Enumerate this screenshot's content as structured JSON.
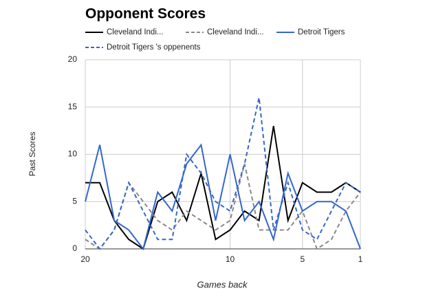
{
  "chart_data": {
    "type": "line",
    "title": "Opponent Scores",
    "x_label": "Games back",
    "y_label": "Past Scores",
    "x": [
      20,
      19,
      18,
      17,
      16,
      15,
      14,
      13,
      12,
      11,
      10,
      9,
      8,
      7,
      6,
      5,
      4,
      3,
      2,
      1
    ],
    "series": [
      {
        "name": "Cleveland Indi...",
        "color": "#000000",
        "dashed": false,
        "values": [
          7,
          7,
          3,
          1,
          0,
          5,
          6,
          3,
          8,
          1,
          2,
          4,
          3,
          13,
          3,
          7,
          6,
          6,
          7,
          6
        ]
      },
      {
        "name": "Cleveland Indi...",
        "color": "#888888",
        "dashed": true,
        "values": [
          1,
          0,
          2,
          7,
          5,
          3,
          2,
          4,
          3,
          2,
          3,
          9,
          2,
          2,
          2,
          4,
          0,
          1,
          4,
          6
        ]
      },
      {
        "name": "Detroit Tigers",
        "color": "#3366cc",
        "dashed": false,
        "values": [
          5,
          11,
          3,
          2,
          0,
          6,
          4,
          9,
          11,
          3,
          10,
          3,
          5,
          1,
          8,
          4,
          5,
          5,
          4,
          0
        ]
      },
      {
        "name": "Detroit Tigers 's oppenents",
        "color": "#3366cc",
        "dashed": true,
        "values": [
          2,
          0,
          2,
          7,
          4,
          1,
          1,
          10,
          8,
          5,
          4,
          9,
          16,
          2,
          7,
          2,
          1,
          4,
          7,
          6
        ]
      }
    ],
    "xlim": [
      20,
      1
    ],
    "xticks": [
      20,
      10,
      5,
      1
    ],
    "ylim": [
      0,
      20
    ],
    "yticks": [
      0,
      5,
      10,
      15,
      20
    ],
    "grid": true
  }
}
